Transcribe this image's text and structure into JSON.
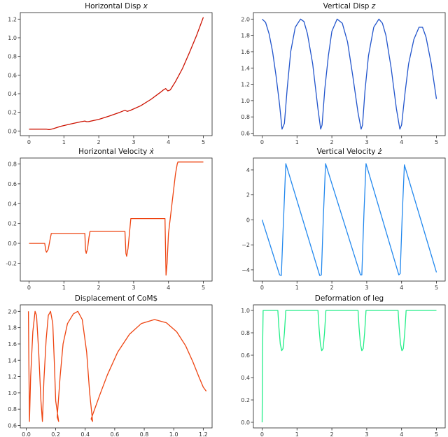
{
  "chart_data": [
    {
      "type": "line",
      "title": "Horizontal Disp x",
      "title_text": "Horizontal Disp ",
      "title_var": "x",
      "color": "#cc1100",
      "xlim": [
        -0.25,
        5.25
      ],
      "ylim": [
        -0.05,
        1.27
      ],
      "xticks": [
        0,
        1,
        2,
        3,
        4,
        5
      ],
      "yticks": [
        0.0,
        0.2,
        0.4,
        0.6,
        0.8,
        1.0,
        1.2
      ],
      "ytick_labels": [
        "0.0",
        "0.2",
        "0.4",
        "0.6",
        "0.8",
        "1.0",
        "1.2"
      ],
      "x": [
        0,
        0.45,
        0.5,
        0.55,
        0.6,
        0.7,
        0.9,
        1.2,
        1.5,
        1.6,
        1.65,
        1.7,
        2.0,
        2.3,
        2.6,
        2.7,
        2.75,
        2.82,
        2.9,
        3.2,
        3.5,
        3.75,
        3.85,
        3.92,
        3.98,
        4.05,
        4.2,
        4.4,
        4.6,
        4.8,
        5.0
      ],
      "series": [
        {
          "values": [
            0.02,
            0.02,
            0.02,
            0.015,
            0.015,
            0.025,
            0.05,
            0.075,
            0.1,
            0.107,
            0.1,
            0.1,
            0.125,
            0.16,
            0.2,
            0.215,
            0.222,
            0.21,
            0.22,
            0.27,
            0.34,
            0.41,
            0.44,
            0.455,
            0.43,
            0.44,
            0.53,
            0.67,
            0.84,
            1.02,
            1.22
          ]
        }
      ]
    },
    {
      "type": "line",
      "title": "Vertical Disp z",
      "title_text": "Vertical Disp ",
      "title_var": "z",
      "color": "#2255cc",
      "xlim": [
        -0.25,
        5.25
      ],
      "ylim": [
        0.57,
        2.08
      ],
      "xticks": [
        0,
        1,
        2,
        3,
        4,
        5
      ],
      "yticks": [
        0.6,
        0.8,
        1.0,
        1.2,
        1.4,
        1.6,
        1.8,
        2.0
      ],
      "ytick_labels": [
        "0.6",
        "0.8",
        "1.0",
        "1.2",
        "1.4",
        "1.6",
        "1.8",
        "2.0"
      ],
      "x": [
        0,
        0.1,
        0.2,
        0.3,
        0.4,
        0.5,
        0.57,
        0.64,
        0.72,
        0.82,
        0.95,
        1.1,
        1.2,
        1.3,
        1.45,
        1.6,
        1.68,
        1.72,
        1.8,
        1.9,
        2.0,
        2.15,
        2.3,
        2.45,
        2.6,
        2.75,
        2.84,
        2.88,
        2.95,
        3.05,
        3.2,
        3.35,
        3.45,
        3.55,
        3.7,
        3.85,
        3.95,
        4.0,
        4.1,
        4.2,
        4.35,
        4.5,
        4.6,
        4.7,
        4.85,
        5.0
      ],
      "series": [
        {
          "values": [
            2.0,
            1.96,
            1.82,
            1.6,
            1.3,
            0.95,
            0.65,
            0.72,
            1.15,
            1.6,
            1.9,
            2.0,
            1.97,
            1.82,
            1.45,
            0.9,
            0.65,
            0.7,
            1.15,
            1.55,
            1.85,
            2.0,
            1.95,
            1.72,
            1.3,
            0.85,
            0.65,
            0.7,
            1.12,
            1.55,
            1.9,
            2.0,
            1.95,
            1.8,
            1.4,
            0.9,
            0.65,
            0.7,
            1.1,
            1.45,
            1.75,
            1.9,
            1.9,
            1.78,
            1.45,
            1.02
          ]
        }
      ]
    },
    {
      "type": "line",
      "title": "Horizontal Velocity ẋ",
      "title_text": "Horizontal Velocity ",
      "title_var": "ẋ",
      "color": "#ee4411",
      "xlim": [
        -0.25,
        5.25
      ],
      "ylim": [
        -0.38,
        0.86
      ],
      "xticks": [
        0,
        1,
        2,
        3,
        4,
        5
      ],
      "yticks": [
        -0.2,
        0.0,
        0.2,
        0.4,
        0.6,
        0.8
      ],
      "ytick_labels": [
        "-0.2",
        "0.0",
        "0.2",
        "0.4",
        "0.6",
        "0.8"
      ],
      "x": [
        0,
        0.45,
        0.48,
        0.5,
        0.55,
        0.6,
        0.64,
        1.6,
        1.62,
        1.64,
        1.68,
        1.72,
        1.75,
        2.75,
        2.78,
        2.8,
        2.84,
        2.88,
        2.92,
        3.9,
        3.93,
        3.96,
        4.0,
        4.1,
        4.2,
        4.25,
        4.27,
        4.5,
        5.0
      ],
      "series": [
        {
          "values": [
            0.0,
            0.0,
            -0.07,
            -0.09,
            -0.06,
            0.03,
            0.1,
            0.1,
            -0.07,
            -0.1,
            -0.05,
            0.06,
            0.12,
            0.12,
            -0.1,
            -0.13,
            -0.05,
            0.1,
            0.25,
            0.25,
            -0.32,
            -0.2,
            0.1,
            0.4,
            0.7,
            0.8,
            0.82,
            0.82,
            0.82
          ]
        }
      ]
    },
    {
      "type": "line",
      "title": "Vertical Velocity ż",
      "title_text": "Vertical Velocity ",
      "title_var": "ż",
      "color": "#2288ee",
      "xlim": [
        -0.25,
        5.25
      ],
      "ylim": [
        -4.9,
        4.95
      ],
      "xticks": [
        0,
        1,
        2,
        3,
        4,
        5
      ],
      "yticks": [
        -4,
        -2,
        0,
        2,
        4
      ],
      "ytick_labels": [
        "−4",
        "−2",
        "0",
        "2",
        "4"
      ],
      "x": [
        0,
        0.5,
        0.55,
        0.6,
        0.68,
        1.65,
        1.7,
        1.76,
        1.82,
        2.82,
        2.86,
        2.92,
        2.98,
        3.92,
        3.96,
        4.02,
        4.08,
        5.0
      ],
      "series": [
        {
          "values": [
            0.0,
            -4.4,
            -4.45,
            -1.0,
            4.5,
            -4.45,
            -4.4,
            0.5,
            4.5,
            -4.4,
            -4.4,
            0.5,
            4.5,
            -4.4,
            -4.3,
            0.5,
            4.4,
            -4.2
          ]
        }
      ]
    },
    {
      "type": "line",
      "title": "Displacement of CoM$",
      "color": "#ee4411",
      "xlim": [
        -0.04,
        1.26
      ],
      "ylim": [
        0.57,
        2.08
      ],
      "xticks": [
        0.0,
        0.2,
        0.4,
        0.6,
        0.8,
        1.0,
        1.2
      ],
      "xtick_labels": [
        "0.0",
        "0.2",
        "0.4",
        "0.6",
        "0.8",
        "1.0",
        "1.2"
      ],
      "yticks": [
        0.6,
        0.8,
        1.0,
        1.2,
        1.4,
        1.6,
        1.8,
        2.0
      ],
      "ytick_labels": [
        "0.6",
        "0.8",
        "1.0",
        "1.2",
        "1.4",
        "1.6",
        "1.8",
        "2.0"
      ],
      "x": [
        0.015,
        0.018,
        0.022,
        0.03,
        0.045,
        0.06,
        0.07,
        0.085,
        0.1,
        0.11,
        0.12,
        0.135,
        0.15,
        0.165,
        0.18,
        0.19,
        0.2,
        0.22,
        0.21,
        0.23,
        0.25,
        0.28,
        0.32,
        0.35,
        0.38,
        0.41,
        0.43,
        0.45,
        0.44,
        0.46,
        0.5,
        0.55,
        0.62,
        0.7,
        0.78,
        0.87,
        0.95,
        1.02,
        1.08,
        1.13,
        1.17,
        1.2,
        1.22
      ],
      "series": [
        {
          "values": [
            2.0,
            1.4,
            0.65,
            1.2,
            1.75,
            2.0,
            1.95,
            1.5,
            0.9,
            0.65,
            1.15,
            1.65,
            1.95,
            2.0,
            1.85,
            1.4,
            0.9,
            0.65,
            0.7,
            1.2,
            1.6,
            1.85,
            1.97,
            2.0,
            1.9,
            1.5,
            1.0,
            0.65,
            0.68,
            0.78,
            0.98,
            1.22,
            1.5,
            1.72,
            1.85,
            1.9,
            1.86,
            1.75,
            1.58,
            1.38,
            1.2,
            1.07,
            1.02
          ]
        }
      ]
    },
    {
      "type": "line",
      "title": "Deformation of leg",
      "color": "#22ee88",
      "xlim": [
        -0.25,
        5.25
      ],
      "ylim": [
        -0.05,
        1.05
      ],
      "xticks": [
        0,
        1,
        2,
        3,
        4,
        5
      ],
      "yticks": [
        0.0,
        0.2,
        0.4,
        0.6,
        0.8,
        1.0
      ],
      "ytick_labels": [
        "0.0",
        "0.2",
        "0.4",
        "0.6",
        "0.8",
        "1.0"
      ],
      "x": [
        0,
        0.01,
        0.03,
        0.45,
        0.48,
        0.52,
        0.56,
        0.6,
        0.64,
        0.68,
        1.6,
        1.63,
        1.67,
        1.71,
        1.75,
        1.79,
        1.83,
        2.75,
        2.78,
        2.82,
        2.86,
        2.9,
        2.94,
        2.98,
        3.9,
        3.93,
        3.97,
        4.01,
        4.05,
        4.09,
        4.13,
        5.0
      ],
      "series": [
        {
          "values": [
            0.0,
            0.6,
            1.0,
            1.0,
            0.85,
            0.7,
            0.64,
            0.66,
            0.8,
            1.0,
            1.0,
            0.85,
            0.7,
            0.64,
            0.66,
            0.8,
            1.0,
            1.0,
            0.85,
            0.7,
            0.64,
            0.66,
            0.8,
            1.0,
            1.0,
            0.85,
            0.7,
            0.64,
            0.66,
            0.8,
            1.0,
            1.0
          ]
        }
      ]
    }
  ]
}
